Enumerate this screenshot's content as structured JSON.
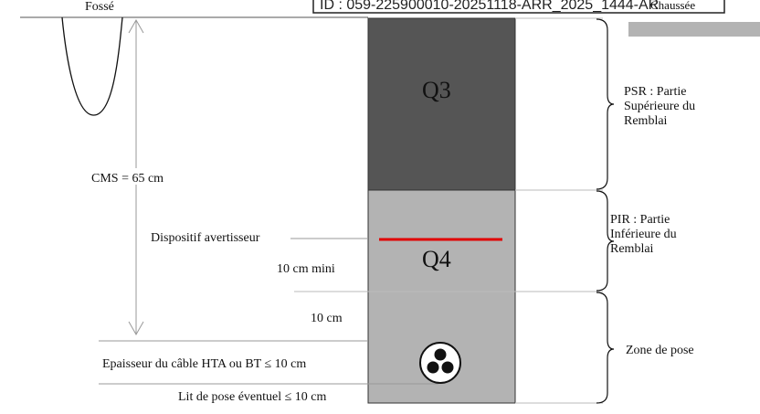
{
  "stamp": {
    "id_text": "ID : 059-225900010-20251118-ARR_2025_1444-AR",
    "road_label": "Chaussée"
  },
  "ditch": {
    "label": "Fossé"
  },
  "layers": {
    "q3": "Q3",
    "q4": "Q4"
  },
  "colors": {
    "q3_fill": "#555555",
    "q4_fill": "#b3b3b3",
    "warning_line": "#e00000",
    "road": "#b3b3b3"
  },
  "zones": {
    "psr": [
      "PSR : Partie",
      "Supérieure du",
      "Remblai"
    ],
    "pir": [
      "PIR : Partie",
      "Inférieure du",
      "Remblai"
    ],
    "pose": "Zone de pose"
  },
  "dimensions": {
    "cms": "CMS = 65 cm",
    "warning_device": "Dispositif avertisseur",
    "min_10": "10 cm mini",
    "ten_cm": "10 cm",
    "cable_thickness": "Epaisseur du câble HTA ou BT  ≤ 10 cm",
    "bedding": "Lit de pose éventuel  ≤ 10 cm"
  }
}
